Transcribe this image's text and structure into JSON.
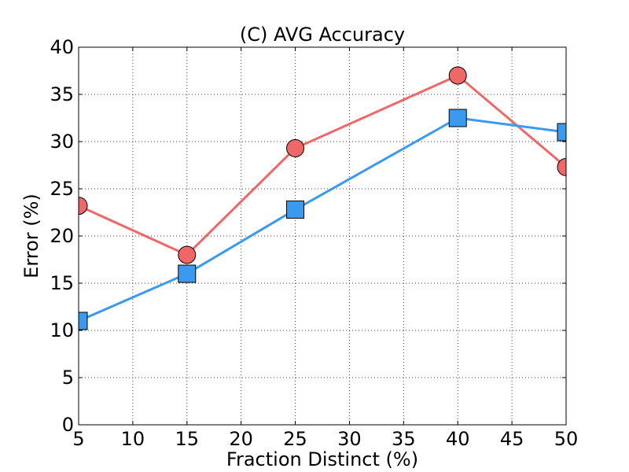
{
  "chart_data": {
    "type": "line",
    "title": "(C) AVG Accuracy",
    "xlabel": "Fraction Distinct (%)",
    "ylabel": "Error (%)",
    "xlim": [
      5,
      50
    ],
    "ylim": [
      0,
      40
    ],
    "xticks": [
      "5",
      "10",
      "15",
      "20",
      "25",
      "30",
      "35",
      "40",
      "45",
      "50"
    ],
    "yticks": [
      "0",
      "5",
      "10",
      "15",
      "20",
      "25",
      "30",
      "35",
      "40"
    ],
    "x": [
      5,
      15,
      25,
      40,
      50
    ],
    "series": [
      {
        "values": [
          23.2,
          18.0,
          29.3,
          37.0,
          27.3
        ],
        "color": "#f06767",
        "marker": "circle"
      },
      {
        "values": [
          11.0,
          16.0,
          22.8,
          32.5,
          31.0
        ],
        "color": "#3b99ee",
        "marker": "square"
      }
    ],
    "grid": true
  }
}
